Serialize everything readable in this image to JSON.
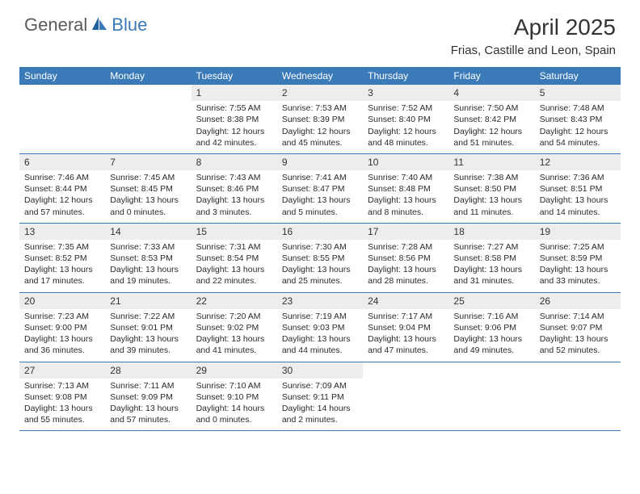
{
  "brand": {
    "word1": "General",
    "word2": "Blue",
    "color_general": "#5a5a5a",
    "color_blue": "#3a7ab8"
  },
  "title": "April 2025",
  "location": "Frias, Castille and Leon, Spain",
  "colors": {
    "header_bg": "#3a7ab8",
    "header_text": "#ffffff",
    "daynum_bg": "#ededed",
    "border": "#3a7ab8",
    "body_text": "#2a2a2a",
    "background": "#ffffff"
  },
  "typography": {
    "title_fontsize": 28,
    "location_fontsize": 15,
    "weekday_fontsize": 12,
    "daynum_fontsize": 12,
    "body_fontsize": 10.5,
    "font_family": "Arial"
  },
  "layout": {
    "columns": 7,
    "rows": 5,
    "cell_min_height": 80
  },
  "weekdays": [
    "Sunday",
    "Monday",
    "Tuesday",
    "Wednesday",
    "Thursday",
    "Friday",
    "Saturday"
  ],
  "weeks": [
    [
      null,
      null,
      {
        "n": "1",
        "sunrise": "Sunrise: 7:55 AM",
        "sunset": "Sunset: 8:38 PM",
        "daylight": "Daylight: 12 hours and 42 minutes."
      },
      {
        "n": "2",
        "sunrise": "Sunrise: 7:53 AM",
        "sunset": "Sunset: 8:39 PM",
        "daylight": "Daylight: 12 hours and 45 minutes."
      },
      {
        "n": "3",
        "sunrise": "Sunrise: 7:52 AM",
        "sunset": "Sunset: 8:40 PM",
        "daylight": "Daylight: 12 hours and 48 minutes."
      },
      {
        "n": "4",
        "sunrise": "Sunrise: 7:50 AM",
        "sunset": "Sunset: 8:42 PM",
        "daylight": "Daylight: 12 hours and 51 minutes."
      },
      {
        "n": "5",
        "sunrise": "Sunrise: 7:48 AM",
        "sunset": "Sunset: 8:43 PM",
        "daylight": "Daylight: 12 hours and 54 minutes."
      }
    ],
    [
      {
        "n": "6",
        "sunrise": "Sunrise: 7:46 AM",
        "sunset": "Sunset: 8:44 PM",
        "daylight": "Daylight: 12 hours and 57 minutes."
      },
      {
        "n": "7",
        "sunrise": "Sunrise: 7:45 AM",
        "sunset": "Sunset: 8:45 PM",
        "daylight": "Daylight: 13 hours and 0 minutes."
      },
      {
        "n": "8",
        "sunrise": "Sunrise: 7:43 AM",
        "sunset": "Sunset: 8:46 PM",
        "daylight": "Daylight: 13 hours and 3 minutes."
      },
      {
        "n": "9",
        "sunrise": "Sunrise: 7:41 AM",
        "sunset": "Sunset: 8:47 PM",
        "daylight": "Daylight: 13 hours and 5 minutes."
      },
      {
        "n": "10",
        "sunrise": "Sunrise: 7:40 AM",
        "sunset": "Sunset: 8:48 PM",
        "daylight": "Daylight: 13 hours and 8 minutes."
      },
      {
        "n": "11",
        "sunrise": "Sunrise: 7:38 AM",
        "sunset": "Sunset: 8:50 PM",
        "daylight": "Daylight: 13 hours and 11 minutes."
      },
      {
        "n": "12",
        "sunrise": "Sunrise: 7:36 AM",
        "sunset": "Sunset: 8:51 PM",
        "daylight": "Daylight: 13 hours and 14 minutes."
      }
    ],
    [
      {
        "n": "13",
        "sunrise": "Sunrise: 7:35 AM",
        "sunset": "Sunset: 8:52 PM",
        "daylight": "Daylight: 13 hours and 17 minutes."
      },
      {
        "n": "14",
        "sunrise": "Sunrise: 7:33 AM",
        "sunset": "Sunset: 8:53 PM",
        "daylight": "Daylight: 13 hours and 19 minutes."
      },
      {
        "n": "15",
        "sunrise": "Sunrise: 7:31 AM",
        "sunset": "Sunset: 8:54 PM",
        "daylight": "Daylight: 13 hours and 22 minutes."
      },
      {
        "n": "16",
        "sunrise": "Sunrise: 7:30 AM",
        "sunset": "Sunset: 8:55 PM",
        "daylight": "Daylight: 13 hours and 25 minutes."
      },
      {
        "n": "17",
        "sunrise": "Sunrise: 7:28 AM",
        "sunset": "Sunset: 8:56 PM",
        "daylight": "Daylight: 13 hours and 28 minutes."
      },
      {
        "n": "18",
        "sunrise": "Sunrise: 7:27 AM",
        "sunset": "Sunset: 8:58 PM",
        "daylight": "Daylight: 13 hours and 31 minutes."
      },
      {
        "n": "19",
        "sunrise": "Sunrise: 7:25 AM",
        "sunset": "Sunset: 8:59 PM",
        "daylight": "Daylight: 13 hours and 33 minutes."
      }
    ],
    [
      {
        "n": "20",
        "sunrise": "Sunrise: 7:23 AM",
        "sunset": "Sunset: 9:00 PM",
        "daylight": "Daylight: 13 hours and 36 minutes."
      },
      {
        "n": "21",
        "sunrise": "Sunrise: 7:22 AM",
        "sunset": "Sunset: 9:01 PM",
        "daylight": "Daylight: 13 hours and 39 minutes."
      },
      {
        "n": "22",
        "sunrise": "Sunrise: 7:20 AM",
        "sunset": "Sunset: 9:02 PM",
        "daylight": "Daylight: 13 hours and 41 minutes."
      },
      {
        "n": "23",
        "sunrise": "Sunrise: 7:19 AM",
        "sunset": "Sunset: 9:03 PM",
        "daylight": "Daylight: 13 hours and 44 minutes."
      },
      {
        "n": "24",
        "sunrise": "Sunrise: 7:17 AM",
        "sunset": "Sunset: 9:04 PM",
        "daylight": "Daylight: 13 hours and 47 minutes."
      },
      {
        "n": "25",
        "sunrise": "Sunrise: 7:16 AM",
        "sunset": "Sunset: 9:06 PM",
        "daylight": "Daylight: 13 hours and 49 minutes."
      },
      {
        "n": "26",
        "sunrise": "Sunrise: 7:14 AM",
        "sunset": "Sunset: 9:07 PM",
        "daylight": "Daylight: 13 hours and 52 minutes."
      }
    ],
    [
      {
        "n": "27",
        "sunrise": "Sunrise: 7:13 AM",
        "sunset": "Sunset: 9:08 PM",
        "daylight": "Daylight: 13 hours and 55 minutes."
      },
      {
        "n": "28",
        "sunrise": "Sunrise: 7:11 AM",
        "sunset": "Sunset: 9:09 PM",
        "daylight": "Daylight: 13 hours and 57 minutes."
      },
      {
        "n": "29",
        "sunrise": "Sunrise: 7:10 AM",
        "sunset": "Sunset: 9:10 PM",
        "daylight": "Daylight: 14 hours and 0 minutes."
      },
      {
        "n": "30",
        "sunrise": "Sunrise: 7:09 AM",
        "sunset": "Sunset: 9:11 PM",
        "daylight": "Daylight: 14 hours and 2 minutes."
      },
      null,
      null,
      null
    ]
  ]
}
